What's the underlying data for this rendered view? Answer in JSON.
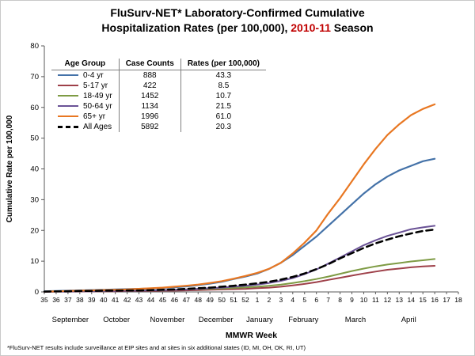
{
  "title": {
    "line1": "FluSurv-NET* Laboratory-Confirmed Cumulative",
    "line2_pre": "Hospitalization Rates (per 100,000), ",
    "line2_highlight": "2010-11",
    "line2_post": " Season",
    "highlight_color": "#C00000"
  },
  "footnote": "*FluSurv-NET results include surveillance at EIP sites and at sites in six additional states (ID, MI, OH, OK, RI, UT)",
  "chart_data": {
    "type": "line",
    "title": "FluSurv-NET Laboratory-Confirmed Cumulative Hospitalization Rates (per 100,000), 2010-11 Season",
    "xlabel": "MMWR Week",
    "ylabel": "Cumulative Rate per 100,000",
    "ylim": [
      0,
      80
    ],
    "yticks": [
      0,
      10,
      20,
      30,
      40,
      50,
      60,
      70,
      80
    ],
    "grid": false,
    "legend_position": "top-left-table",
    "categories": [
      "35",
      "36",
      "37",
      "38",
      "39",
      "40",
      "41",
      "42",
      "43",
      "44",
      "45",
      "46",
      "47",
      "48",
      "49",
      "50",
      "51",
      "52",
      "1",
      "2",
      "3",
      "4",
      "5",
      "6",
      "7",
      "8",
      "9",
      "10",
      "11",
      "12",
      "13",
      "14",
      "15",
      "16",
      "17",
      "18"
    ],
    "months": [
      {
        "label": "September",
        "center_index": 2.2
      },
      {
        "label": "October",
        "center_index": 6.1
      },
      {
        "label": "November",
        "center_index": 10.4
      },
      {
        "label": "December",
        "center_index": 14.5
      },
      {
        "label": "January",
        "center_index": 18.2
      },
      {
        "label": "February",
        "center_index": 21.9
      },
      {
        "label": "March",
        "center_index": 26.3
      },
      {
        "label": "April",
        "center_index": 30.8
      }
    ],
    "legend": {
      "headers": [
        "Age Group",
        "Case Counts",
        "Rates (per 100,000)"
      ]
    },
    "series": [
      {
        "name": "0-4 yr",
        "case_counts": "888",
        "rate": "43.3",
        "color": "#4472A8",
        "dash": null,
        "values": [
          0.2,
          0.3,
          0.4,
          0.5,
          0.6,
          0.7,
          0.8,
          0.9,
          1.0,
          1.1,
          1.3,
          1.5,
          1.8,
          2.2,
          2.7,
          3.3,
          4.2,
          5.0,
          6.0,
          7.5,
          9.5,
          12.0,
          15.0,
          18.0,
          21.5,
          25.0,
          28.5,
          32.0,
          35.0,
          37.5,
          39.5,
          41.0,
          42.5,
          43.3
        ]
      },
      {
        "name": "5-17 yr",
        "case_counts": "422",
        "rate": "8.5",
        "color": "#9E4049",
        "dash": null,
        "values": [
          0.0,
          0.1,
          0.1,
          0.1,
          0.2,
          0.2,
          0.2,
          0.3,
          0.3,
          0.3,
          0.4,
          0.4,
          0.5,
          0.6,
          0.7,
          0.8,
          0.9,
          1.0,
          1.2,
          1.4,
          1.7,
          2.1,
          2.6,
          3.2,
          3.9,
          4.6,
          5.3,
          6.0,
          6.6,
          7.2,
          7.6,
          8.0,
          8.3,
          8.5
        ]
      },
      {
        "name": "18-49 yr",
        "case_counts": "1452",
        "rate": "10.7",
        "color": "#7E9B44",
        "dash": null,
        "values": [
          0.1,
          0.1,
          0.2,
          0.2,
          0.3,
          0.3,
          0.4,
          0.4,
          0.5,
          0.5,
          0.6,
          0.7,
          0.8,
          0.9,
          1.0,
          1.1,
          1.3,
          1.5,
          1.7,
          2.0,
          2.4,
          2.9,
          3.5,
          4.2,
          5.0,
          5.9,
          6.8,
          7.6,
          8.3,
          8.9,
          9.4,
          9.9,
          10.3,
          10.7
        ]
      },
      {
        "name": "50-64 yr",
        "case_counts": "1134",
        "rate": "21.5",
        "color": "#6A5296",
        "dash": null,
        "values": [
          0.0,
          0.1,
          0.1,
          0.2,
          0.2,
          0.3,
          0.3,
          0.4,
          0.4,
          0.5,
          0.6,
          0.7,
          0.8,
          1.0,
          1.2,
          1.4,
          1.7,
          2.0,
          2.4,
          2.9,
          3.6,
          4.5,
          5.8,
          7.3,
          9.2,
          11.2,
          13.2,
          15.2,
          16.8,
          18.2,
          19.3,
          20.4,
          21.0,
          21.5
        ]
      },
      {
        "name": "65+ yr",
        "case_counts": "1996",
        "rate": "61.0",
        "color": "#E87722",
        "dash": null,
        "values": [
          0.1,
          0.2,
          0.3,
          0.4,
          0.5,
          0.6,
          0.7,
          0.8,
          1.0,
          1.2,
          1.4,
          1.7,
          2.0,
          2.4,
          2.9,
          3.5,
          4.3,
          5.2,
          6.2,
          7.5,
          9.5,
          12.5,
          16.0,
          20.0,
          25.5,
          30.5,
          36.0,
          41.5,
          46.5,
          51.0,
          54.5,
          57.5,
          59.5,
          61.0
        ]
      },
      {
        "name": "All Ages",
        "case_counts": "5892",
        "rate": "20.3",
        "color": "#000000",
        "dash": "8 5",
        "values": [
          0.1,
          0.2,
          0.2,
          0.3,
          0.3,
          0.4,
          0.4,
          0.5,
          0.5,
          0.6,
          0.7,
          0.8,
          1.0,
          1.2,
          1.4,
          1.7,
          2.0,
          2.4,
          2.8,
          3.3,
          4.0,
          4.9,
          6.0,
          7.4,
          9.0,
          10.9,
          12.6,
          14.3,
          15.8,
          17.0,
          18.1,
          19.0,
          19.8,
          20.3
        ]
      }
    ]
  }
}
